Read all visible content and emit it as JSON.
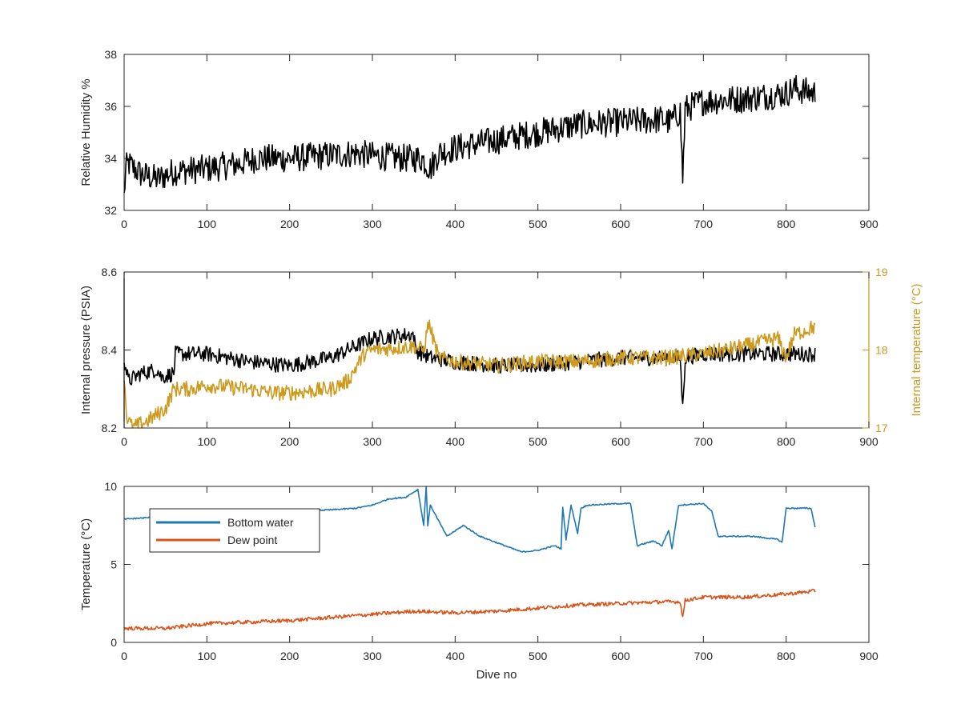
{
  "chart_data": [
    {
      "type": "line",
      "xlabel": "",
      "ylabel": "Relative Humidity %",
      "xlim": [
        0,
        900
      ],
      "ylim": [
        32,
        38
      ],
      "xticks": [
        0,
        100,
        200,
        300,
        400,
        500,
        600,
        700,
        800,
        900
      ],
      "yticks": [
        32,
        34,
        36,
        38
      ],
      "grid": false,
      "series": [
        {
          "color": "#000000",
          "noise": 0.55,
          "x": [
            0,
            2,
            5,
            20,
            40,
            60,
            100,
            140,
            160,
            200,
            240,
            280,
            300,
            340,
            360,
            370,
            380,
            400,
            450,
            500,
            550,
            600,
            650,
            660,
            672,
            675,
            678,
            700,
            750,
            800,
            810,
            820,
            835
          ],
          "y": [
            32.5,
            33.6,
            33.8,
            33.4,
            33.2,
            33.5,
            33.6,
            33.8,
            34.0,
            34.0,
            34.1,
            34.2,
            34.1,
            34.0,
            34.0,
            33.6,
            34.2,
            34.4,
            34.7,
            35.0,
            35.3,
            35.4,
            35.5,
            35.4,
            35.8,
            33.2,
            35.9,
            36.2,
            36.3,
            36.5,
            36.7,
            36.6,
            36.5
          ]
        }
      ]
    },
    {
      "type": "line",
      "xlabel": "",
      "ylabel": "Internal pressure (PSIA)",
      "ylabel_right": "Internal temperature (°C)",
      "xlim": [
        0,
        900
      ],
      "ylim": [
        8.2,
        8.6
      ],
      "ylim_right": [
        17,
        19
      ],
      "xticks": [
        0,
        100,
        200,
        300,
        400,
        500,
        600,
        700,
        800,
        900
      ],
      "yticks": [
        8.2,
        8.4,
        8.6
      ],
      "yticks_right": [
        17,
        18,
        19
      ],
      "grid": false,
      "series": [
        {
          "color": "#000000",
          "axis": "left",
          "noise": 0.02,
          "x": [
            0,
            5,
            20,
            40,
            45,
            60,
            62,
            100,
            150,
            200,
            250,
            280,
            300,
            350,
            352,
            370,
            400,
            450,
            500,
            550,
            600,
            650,
            672,
            675,
            678,
            700,
            750,
            800,
            835
          ],
          "y": [
            8.38,
            8.32,
            8.34,
            8.35,
            8.33,
            8.34,
            8.39,
            8.39,
            8.37,
            8.36,
            8.38,
            8.41,
            8.43,
            8.44,
            8.4,
            8.38,
            8.37,
            8.36,
            8.36,
            8.37,
            8.38,
            8.38,
            8.38,
            8.25,
            8.38,
            8.39,
            8.39,
            8.39,
            8.39
          ]
        },
        {
          "color": "#CC9A1F",
          "axis": "right",
          "noise": 0.1,
          "x": [
            0,
            3,
            10,
            30,
            50,
            60,
            80,
            100,
            150,
            180,
            200,
            250,
            270,
            290,
            300,
            350,
            362,
            368,
            380,
            400,
            450,
            500,
            550,
            600,
            650,
            700,
            750,
            790,
            800,
            810,
            835
          ],
          "y": [
            17.7,
            17.15,
            17.0,
            17.1,
            17.25,
            17.5,
            17.5,
            17.55,
            17.5,
            17.45,
            17.45,
            17.5,
            17.6,
            17.95,
            18.0,
            18.05,
            18.0,
            18.35,
            17.9,
            17.85,
            17.8,
            17.85,
            17.85,
            17.9,
            17.9,
            17.95,
            18.05,
            18.15,
            17.9,
            18.2,
            18.3
          ]
        }
      ]
    },
    {
      "type": "line",
      "xlabel": "Dive no",
      "ylabel": "Temperature (°C)",
      "xlim": [
        0,
        900
      ],
      "ylim": [
        0,
        10
      ],
      "xticks": [
        0,
        100,
        200,
        300,
        400,
        500,
        600,
        700,
        800,
        900
      ],
      "yticks": [
        0,
        5,
        10
      ],
      "grid": false,
      "legend": "top-left",
      "series": [
        {
          "name": "Bottom water",
          "color": "#1F77B4",
          "noise": 0.04,
          "x": [
            0,
            30,
            60,
            100,
            150,
            200,
            250,
            280,
            300,
            320,
            340,
            355,
            362,
            365,
            367,
            370,
            390,
            410,
            430,
            450,
            480,
            500,
            520,
            528,
            530,
            534,
            540,
            548,
            552,
            560,
            600,
            612,
            620,
            640,
            650,
            658,
            662,
            670,
            700,
            710,
            718,
            760,
            790,
            795,
            800,
            830,
            835
          ],
          "y": [
            7.9,
            8.0,
            8.5,
            8.5,
            8.5,
            8.4,
            8.5,
            8.6,
            8.8,
            9.2,
            9.3,
            9.8,
            7.5,
            10.0,
            7.5,
            8.8,
            6.8,
            7.5,
            6.8,
            6.4,
            5.8,
            5.9,
            6.2,
            6.0,
            8.7,
            6.6,
            8.8,
            7.0,
            8.6,
            8.8,
            8.9,
            8.9,
            6.2,
            6.5,
            6.2,
            7.2,
            6.0,
            8.8,
            8.9,
            8.4,
            6.8,
            6.8,
            6.6,
            6.4,
            8.6,
            8.6,
            7.4
          ]
        },
        {
          "name": "Dew point",
          "color": "#D95319",
          "noise": 0.12,
          "x": [
            0,
            50,
            100,
            150,
            200,
            250,
            300,
            350,
            400,
            450,
            500,
            550,
            600,
            650,
            672,
            675,
            678,
            700,
            750,
            800,
            835
          ],
          "y": [
            0.9,
            0.9,
            1.2,
            1.3,
            1.4,
            1.6,
            1.8,
            2.0,
            1.9,
            2.0,
            2.2,
            2.4,
            2.5,
            2.6,
            2.6,
            1.6,
            2.7,
            2.9,
            2.9,
            3.1,
            3.3
          ]
        }
      ]
    }
  ]
}
